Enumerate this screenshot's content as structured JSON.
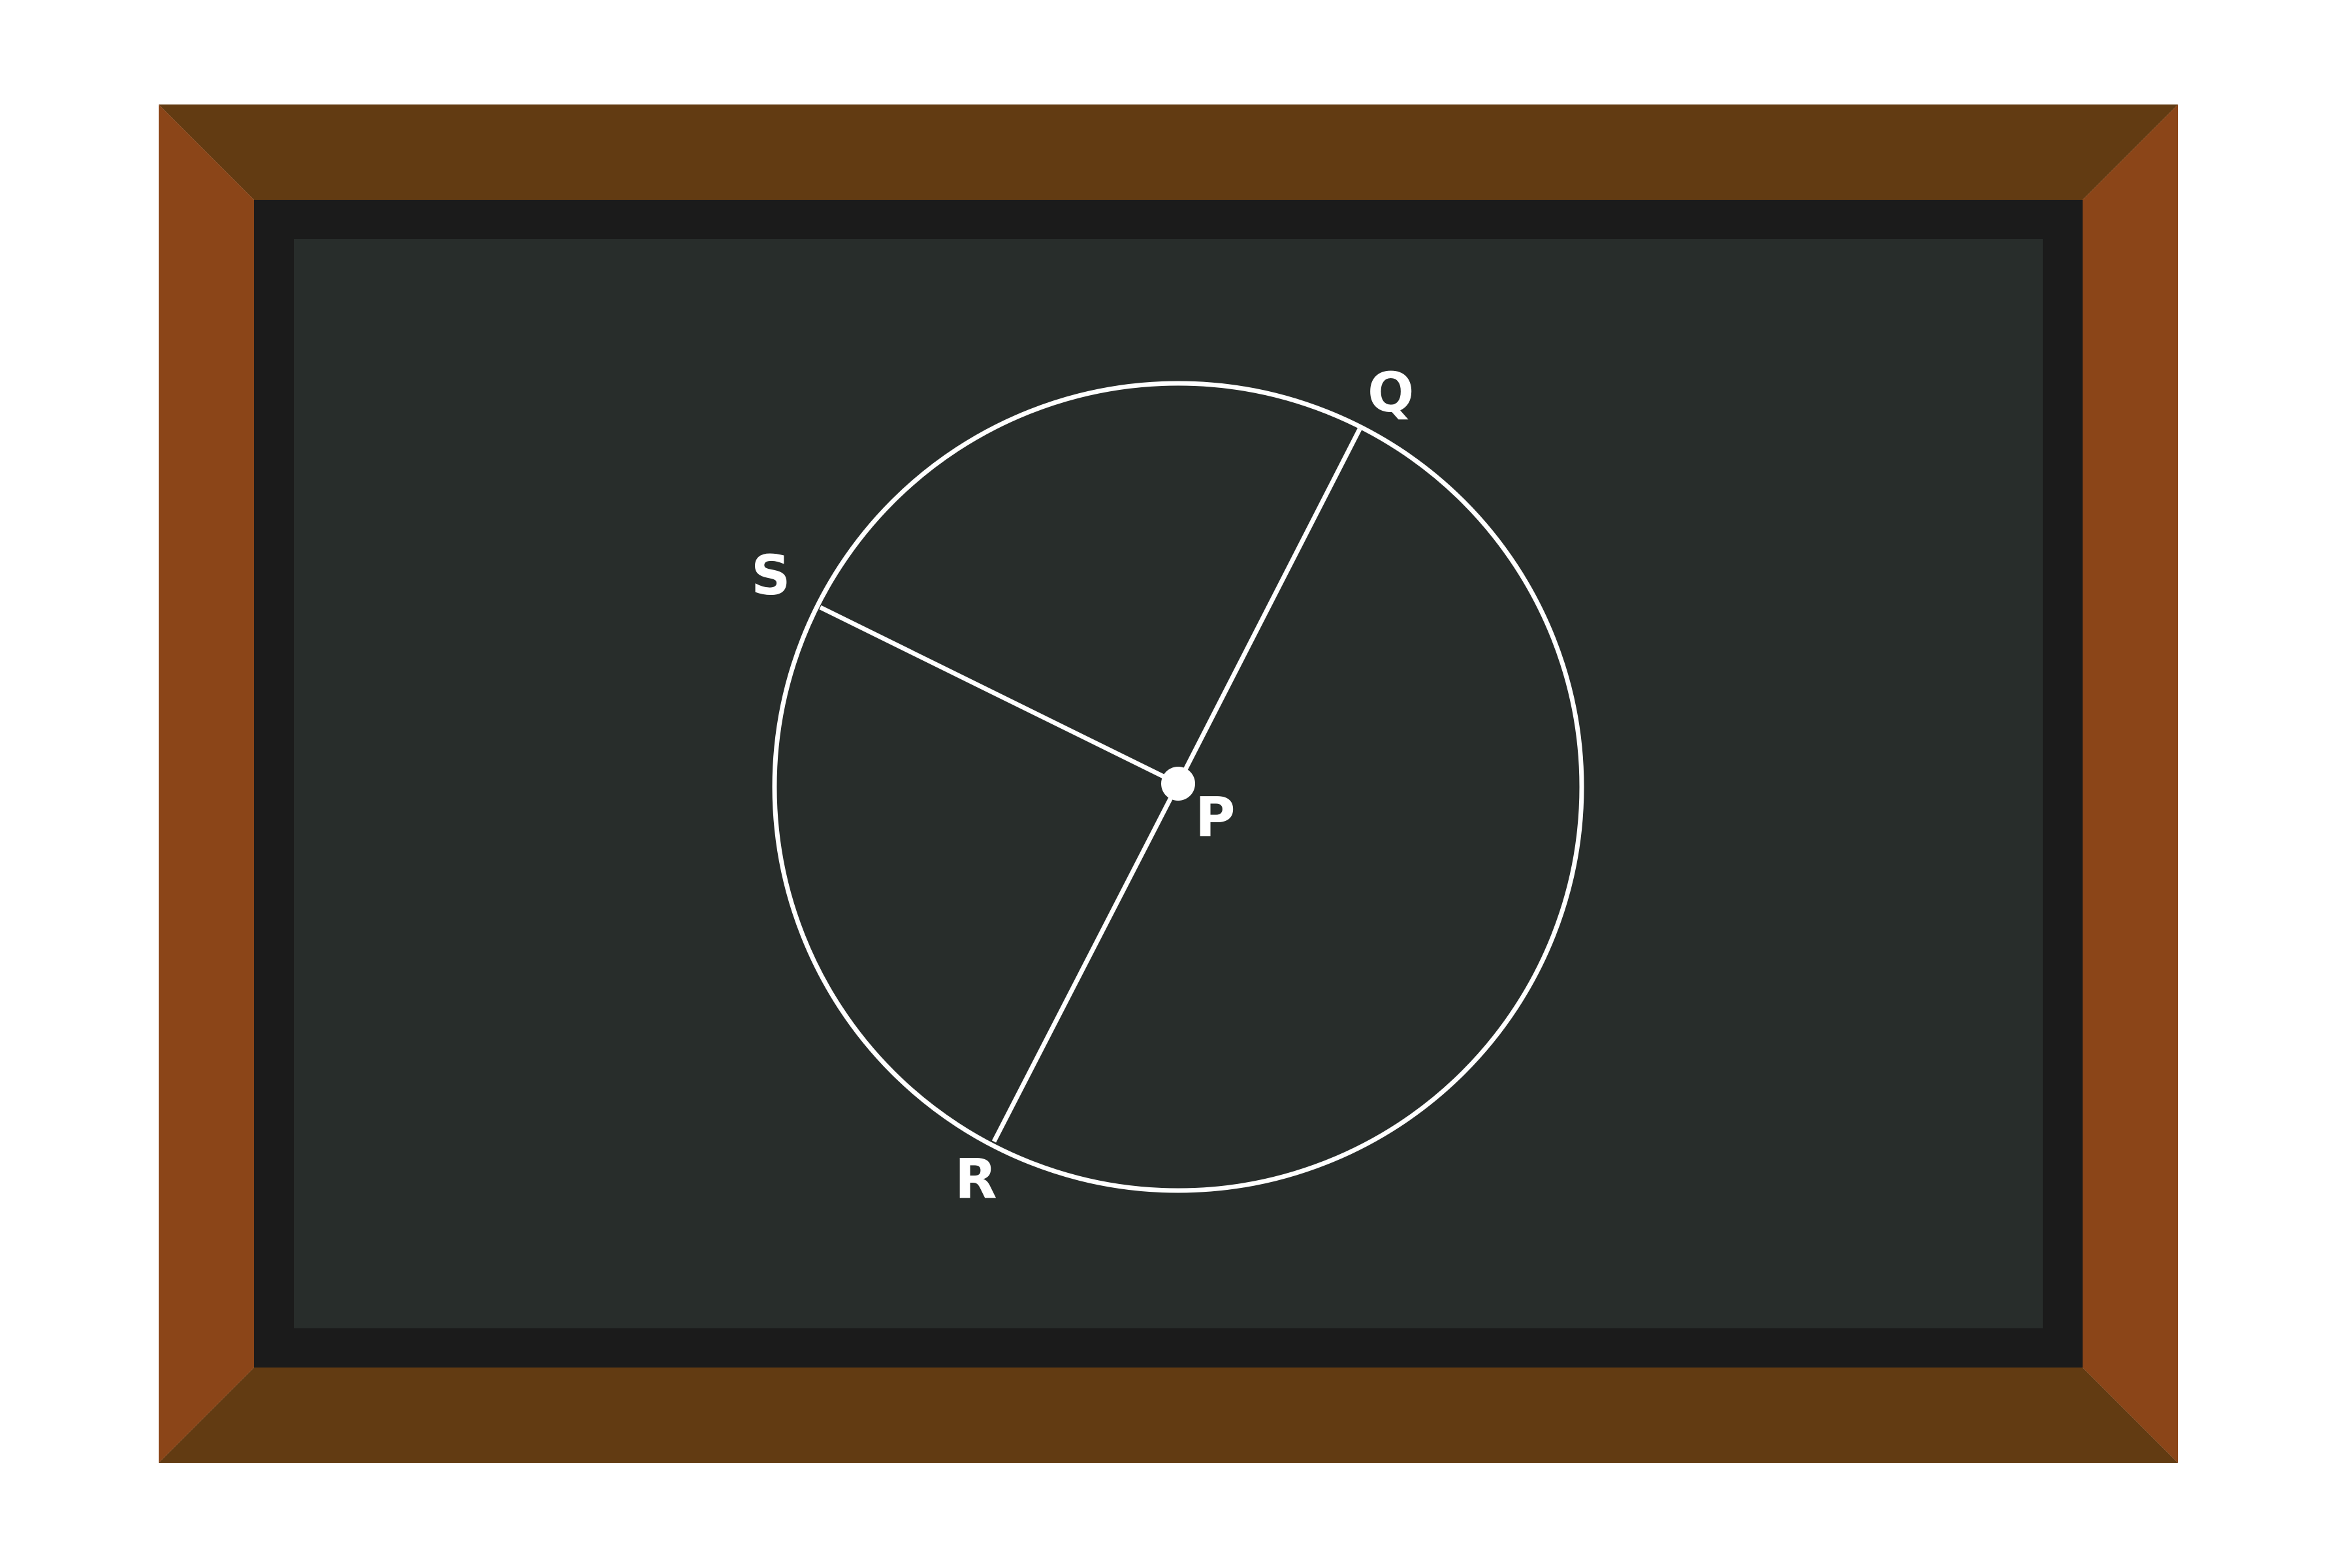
{
  "diagram": {
    "colors": {
      "page_background": "#ffffff",
      "frame_top_bottom": "#623b12",
      "frame_sides": "#8b4518",
      "board_border": "#1b1b1b",
      "board_surface": "#282d2b",
      "chalk": "#ffffff"
    },
    "center_label": "P",
    "points": {
      "Q": {
        "label": "Q"
      },
      "R": {
        "label": "R"
      },
      "S": {
        "label": "S"
      }
    },
    "segments": [
      "PQ",
      "PR",
      "PS"
    ]
  }
}
